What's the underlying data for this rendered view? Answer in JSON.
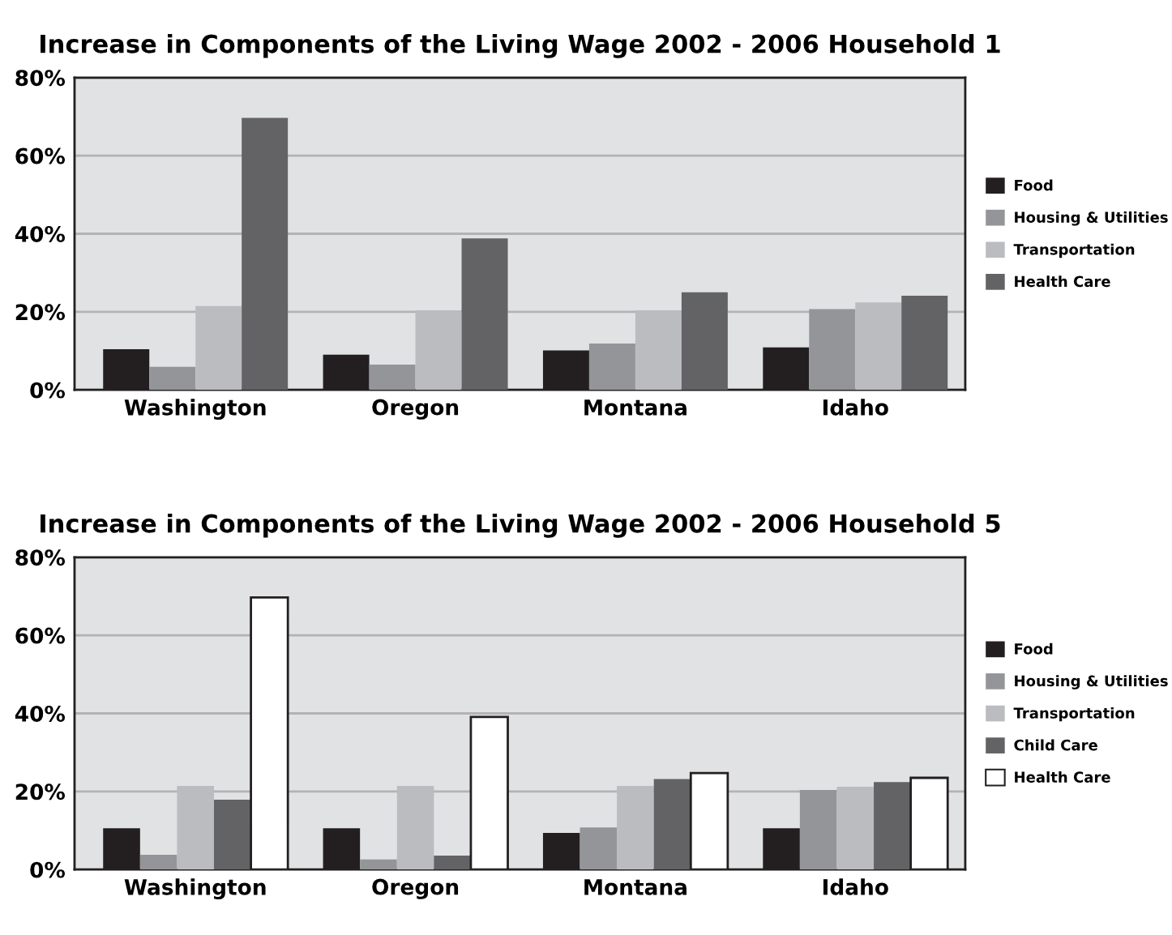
{
  "chart_data": [
    {
      "type": "bar",
      "title": "Increase in Components of the Living Wage 2002 - 2006 Household 1",
      "categories": [
        "Washington",
        "Oregon",
        "Montana",
        "Idaho"
      ],
      "series": [
        {
          "name": "Food",
          "color": "#231f20",
          "values": [
            10.4,
            9.0,
            10.1,
            10.9
          ]
        },
        {
          "name": "Housing & Utilities",
          "color": "#949598",
          "values": [
            5.9,
            6.5,
            11.9,
            20.7
          ]
        },
        {
          "name": "Transportation",
          "color": "#bbbcc0",
          "values": [
            21.5,
            20.4,
            20.4,
            22.4
          ]
        },
        {
          "name": "Health Care",
          "color": "#636365",
          "values": [
            69.7,
            38.8,
            25.0,
            24.1
          ]
        }
      ],
      "ylim": [
        0,
        80
      ],
      "yticks": [
        {
          "value": 0,
          "label": "0%"
        },
        {
          "value": 20,
          "label": "20%"
        },
        {
          "value": 40,
          "label": "40%"
        },
        {
          "value": 60,
          "label": "60%"
        },
        {
          "value": 80,
          "label": "80%"
        }
      ],
      "grid": "y",
      "legend": "right"
    },
    {
      "type": "bar",
      "title": "Increase in Components of the Living Wage 2002 - 2006 Household 5",
      "categories": [
        "Washington",
        "Oregon",
        "Montana",
        "Idaho"
      ],
      "series": [
        {
          "name": "Food",
          "color": "#231f20",
          "values": [
            10.6,
            10.6,
            9.4,
            10.6
          ]
        },
        {
          "name": "Housing & Utilities",
          "color": "#949598",
          "values": [
            3.8,
            2.6,
            10.8,
            20.4
          ]
        },
        {
          "name": "Transportation",
          "color": "#bbbcc0",
          "values": [
            21.4,
            21.4,
            21.4,
            21.2
          ]
        },
        {
          "name": "Child Care",
          "color": "#636365",
          "values": [
            17.9,
            3.6,
            23.2,
            22.4
          ]
        },
        {
          "name": "Health Care",
          "color": "#ffffff",
          "values": [
            69.7,
            39.1,
            24.7,
            23.5
          ]
        }
      ],
      "ylim": [
        0,
        80
      ],
      "yticks": [
        {
          "value": 0,
          "label": "0%"
        },
        {
          "value": 20,
          "label": "20%"
        },
        {
          "value": 40,
          "label": "40%"
        },
        {
          "value": 60,
          "label": "60%"
        },
        {
          "value": 80,
          "label": "80%"
        }
      ],
      "grid": "y",
      "legend": "right"
    }
  ]
}
